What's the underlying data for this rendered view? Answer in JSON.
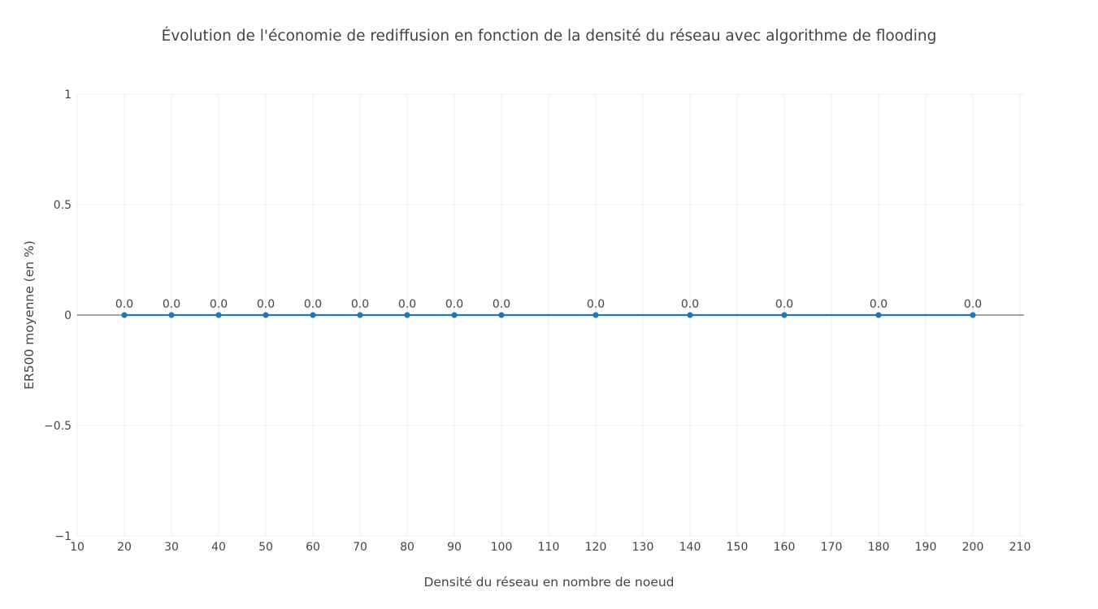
{
  "chart_data": {
    "type": "line",
    "title": "Évolution de l'économie de rediffusion en fonction de la densité du réseau avec algorithme de flooding",
    "xlabel": "Densité du réseau en nombre de noeud",
    "ylabel": "ER500 moyenne (en %)",
    "xlim": [
      10,
      210
    ],
    "ylim": [
      -1,
      1
    ],
    "x_ticks": [
      "10",
      "20",
      "30",
      "40",
      "50",
      "60",
      "70",
      "80",
      "90",
      "100",
      "110",
      "120",
      "130",
      "140",
      "150",
      "160",
      "170",
      "180",
      "190",
      "200",
      "210"
    ],
    "y_ticks": [
      "−1",
      "−0.5",
      "0",
      "0.5",
      "1"
    ],
    "grid": true,
    "legend": "none",
    "series": [
      {
        "x": [
          20,
          30,
          40,
          50,
          60,
          70,
          80,
          90,
          100,
          120,
          140,
          160,
          180,
          200
        ],
        "y": [
          0,
          0,
          0,
          0,
          0,
          0,
          0,
          0,
          0,
          0,
          0,
          0,
          0,
          0
        ],
        "labels": [
          "0.0",
          "0.0",
          "0.0",
          "0.0",
          "0.0",
          "0.0",
          "0.0",
          "0.0",
          "0.0",
          "0.0",
          "0.0",
          "0.0",
          "0.0",
          "0.0"
        ],
        "color": "#1f77b4"
      }
    ],
    "grid_color": "#eeeeee",
    "zero_line_color": "#444444"
  }
}
